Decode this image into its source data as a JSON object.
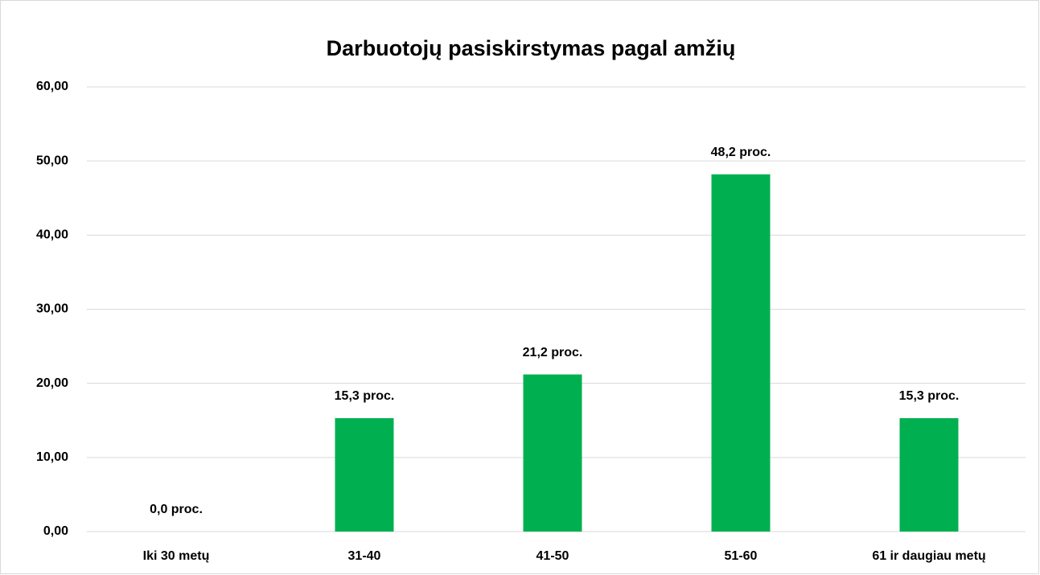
{
  "chart_data": {
    "type": "bar",
    "title": "Darbuotojų pasiskirstymas pagal amžių",
    "categories": [
      "Iki 30 metų",
      "31-40",
      "41-50",
      "51-60",
      "61 ir daugiau metų"
    ],
    "values": [
      0,
      15.3,
      21.2,
      48.2,
      15.3
    ],
    "value_labels": [
      "0,0 proc.",
      "15,3 proc.",
      "21,2 proc.",
      "48,2 proc.",
      "15,3 proc."
    ],
    "color": "#00b050",
    "ylim": [
      0,
      60
    ],
    "yticks": [
      {
        "value": 0,
        "label": "0,00"
      },
      {
        "value": 10,
        "label": "10,00"
      },
      {
        "value": 20,
        "label": "20,00"
      },
      {
        "value": 30,
        "label": "30,00"
      },
      {
        "value": 40,
        "label": "40,00"
      },
      {
        "value": 50,
        "label": "50,00"
      },
      {
        "value": 60,
        "label": "60,00"
      }
    ],
    "grid": true
  }
}
